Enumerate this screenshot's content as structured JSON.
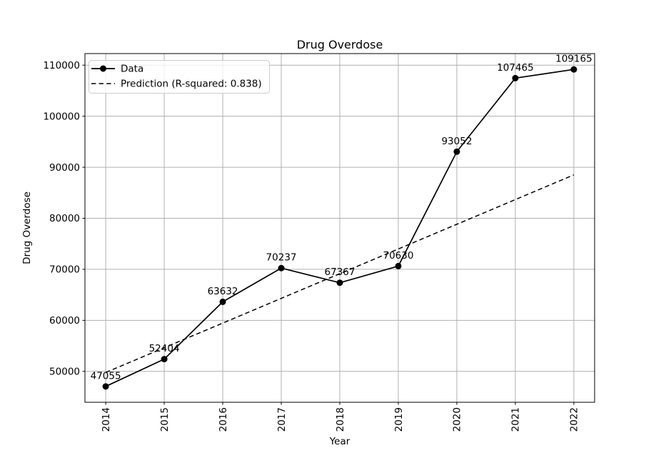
{
  "figure": {
    "title": "Drug Overdose"
  },
  "chart_data": {
    "type": "line",
    "title": "Drug Overdose",
    "xlabel": "Year",
    "ylabel": "Drug Overdose",
    "x": [
      2014,
      2015,
      2016,
      2017,
      2018,
      2019,
      2020,
      2021,
      2022
    ],
    "series": [
      {
        "name": "Data",
        "style": "solid",
        "marker": "circle",
        "values": [
          47055,
          52404,
          63632,
          70237,
          67367,
          70630,
          93052,
          107465,
          109165
        ],
        "annotate": true
      },
      {
        "name": "Prediction (R-squared: 0.838)",
        "style": "dashed",
        "marker": "none",
        "x": [
          2014,
          2022
        ],
        "values": [
          49790,
          88503
        ],
        "annotate": false
      }
    ],
    "annotations": [
      "47055",
      "52404",
      "63632",
      "70237",
      "67367",
      "70630",
      "93052",
      "107465",
      "109165"
    ],
    "r_squared_label": "0.838",
    "xticks": [
      2014,
      2015,
      2016,
      2017,
      2018,
      2019,
      2020,
      2021,
      2022
    ],
    "yticks": [
      50000,
      60000,
      70000,
      80000,
      90000,
      100000,
      110000
    ],
    "xlim": [
      2013.645,
      2022.355
    ],
    "ylim": [
      43950,
      112270
    ],
    "grid": true,
    "legend": {
      "position": "upper-left",
      "entries": [
        "Data",
        "Prediction (R-squared: 0.838)"
      ]
    },
    "colors": {
      "line": "#000000",
      "grid": "#b0b0b0",
      "background": "#ffffff",
      "legend_edge": "#cccccc",
      "legend_face": "rgba(255,255,255,0.8)"
    }
  }
}
